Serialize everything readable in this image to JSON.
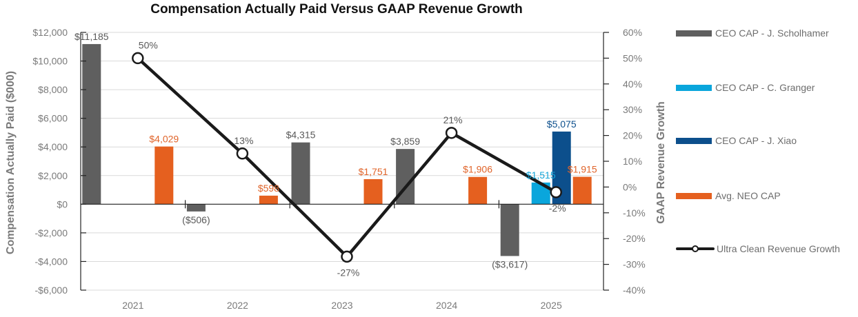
{
  "chart_data": {
    "type": "bar",
    "title": "Compensation Actually Paid Versus GAAP Revenue Growth",
    "xlabel": "",
    "ylabel": "Compensation Actually Paid ($000)",
    "y2label": "GAAP Revenue Growth",
    "categories": [
      "2021",
      "2022",
      "2023",
      "2024",
      "2025"
    ],
    "ylim": [
      -6000,
      12000
    ],
    "yticks": [
      12000,
      10000,
      8000,
      6000,
      4000,
      2000,
      0,
      -2000,
      -4000,
      -6000
    ],
    "ytick_labels": [
      "$12,000",
      "$10,000",
      "$8,000",
      "$6,000",
      "$4,000",
      "$2,000",
      "$0",
      "-$2,000",
      "-$4,000",
      "-$6,000"
    ],
    "y2lim": [
      -40,
      60
    ],
    "y2ticks": [
      60,
      50,
      40,
      30,
      20,
      10,
      0,
      -10,
      -20,
      -30,
      -40
    ],
    "y2tick_labels": [
      "60%",
      "50%",
      "40%",
      "30%",
      "20%",
      "10%",
      "0%",
      "-10%",
      "-20%",
      "-30%",
      "-40%"
    ],
    "grid": true,
    "legend_position": "right",
    "series": [
      {
        "name": "CEO CAP - J. Scholhamer",
        "type": "bar",
        "color": "#5f5f5f",
        "label_color": "#595959",
        "values": [
          11185,
          -506,
          4315,
          3859,
          -3617
        ],
        "labels": [
          "$11,185",
          "($506)",
          "$4,315",
          "$3,859",
          "($3,617)"
        ]
      },
      {
        "name": "CEO CAP - C. Granger",
        "type": "bar",
        "color": "#0aa6dc",
        "label_color": "#14a5d9",
        "values": [
          null,
          null,
          null,
          null,
          1515
        ],
        "labels": [
          "",
          "",
          "",
          "",
          "$1,515"
        ]
      },
      {
        "name": "CEO CAP - J. Xiao",
        "type": "bar",
        "color": "#0c4f8c",
        "label_color": "#0c4f8c",
        "values": [
          null,
          null,
          null,
          null,
          5075
        ],
        "labels": [
          "",
          "",
          "",
          "",
          "$5,075"
        ]
      },
      {
        "name": "Avg. NEO CAP",
        "type": "bar",
        "color": "#e5601f",
        "label_color": "#e0642a",
        "values": [
          4029,
          598,
          1751,
          1906,
          1915
        ],
        "labels": [
          "$4,029",
          "$598",
          "$1,751",
          "$1,906",
          "$1,915"
        ]
      },
      {
        "name": "Ultra Clean Revenue Growth",
        "type": "line",
        "axis": "right",
        "color": "#1a1a1a",
        "label_color": "#595959",
        "values": [
          50,
          13,
          -27,
          21,
          -2
        ],
        "labels": [
          "50%",
          "13%",
          "-27%",
          "21%",
          "-2%"
        ]
      }
    ]
  }
}
